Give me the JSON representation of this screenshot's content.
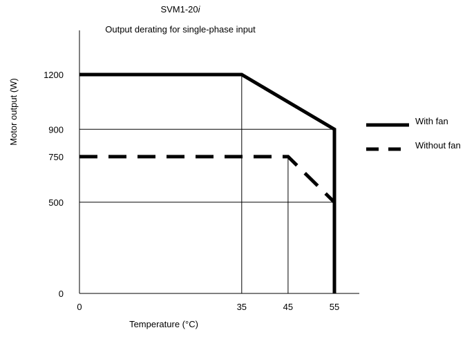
{
  "chart_data": {
    "type": "line",
    "title": "SVM1-20",
    "title_italic_suffix": "i",
    "subtitle": "Output derating for single-phase input",
    "xlabel": "Temperature (°C)",
    "ylabel": "Motor output (W)",
    "xlim": [
      0,
      60
    ],
    "ylim": [
      0,
      1400
    ],
    "x_ticks": [
      {
        "value": 0,
        "label": "0"
      },
      {
        "value": 35,
        "label": "35"
      },
      {
        "value": 45,
        "label": "45"
      },
      {
        "value": 55,
        "label": "55"
      }
    ],
    "y_ticks": [
      {
        "value": 0,
        "label": "0"
      },
      {
        "value": 500,
        "label": "500"
      },
      {
        "value": 750,
        "label": "750"
      },
      {
        "value": 900,
        "label": "900"
      },
      {
        "value": 1200,
        "label": "1200"
      }
    ],
    "grid": "reference lines at y=500 and y=900 (0 to 55 °C), vertical lines at x=35 and x=45",
    "legend_position": "right",
    "series": [
      {
        "name": "With fan",
        "style": "solid",
        "color": "#000000",
        "points": [
          [
            0,
            1200
          ],
          [
            35,
            1200
          ],
          [
            55,
            900
          ],
          [
            55,
            0
          ]
        ]
      },
      {
        "name": "Without fan",
        "style": "dashed",
        "color": "#000000",
        "points": [
          [
            0,
            750
          ],
          [
            45,
            750
          ],
          [
            55,
            500
          ]
        ]
      }
    ]
  }
}
